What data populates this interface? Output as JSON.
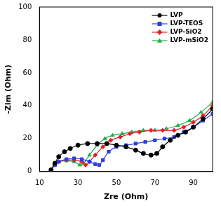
{
  "chart_data": {
    "type": "line",
    "x_label": "Zre (Ohm)",
    "y_label": "-Zim (Ohm)",
    "xlim": [
      10,
      100
    ],
    "xticks": [
      10,
      30,
      50,
      70,
      90
    ],
    "ylim": [
      0,
      100
    ],
    "yticks": [
      0,
      20,
      40,
      60,
      80,
      100
    ],
    "grid": false,
    "legend": "upper right",
    "series": [
      {
        "name": "LVP",
        "color": "#000000",
        "marker": "circle",
        "line_style": "solid",
        "x": [
          16,
          18,
          20,
          23,
          26,
          30,
          35,
          40,
          45,
          50,
          55,
          60,
          64,
          68,
          71,
          74,
          78,
          82,
          86,
          90,
          95,
          100
        ],
        "values": [
          1,
          5,
          9,
          12,
          14,
          16,
          17,
          17,
          17,
          16,
          15,
          13,
          11,
          10,
          11,
          15,
          19,
          22,
          24,
          27,
          32,
          38
        ]
      },
      {
        "name": "LVP-TEOS",
        "color": "#2a3fe0",
        "marker": "square",
        "line_style": "solid",
        "x": [
          16,
          18,
          20,
          24,
          28,
          32,
          36,
          39,
          41,
          43,
          46,
          50,
          55,
          60,
          65,
          70,
          75,
          80,
          85,
          90,
          95,
          100
        ],
        "values": [
          1,
          4,
          6,
          7.5,
          8,
          7.5,
          6,
          4.5,
          4,
          7,
          12,
          15,
          16,
          17,
          18,
          19,
          20,
          21,
          24,
          27,
          31,
          35
        ]
      },
      {
        "name": "LVP-SiO2",
        "color": "#e0202a",
        "marker": "diamond",
        "line_style": "solid",
        "x": [
          16,
          18,
          20,
          24,
          28,
          32,
          34,
          36,
          39,
          43,
          47,
          52,
          57,
          62,
          68,
          74,
          80,
          85,
          90,
          95,
          100
        ],
        "values": [
          1,
          4,
          6,
          7,
          7,
          6,
          4,
          6,
          10,
          15,
          19,
          21,
          23,
          24,
          25,
          25,
          25,
          27,
          30,
          34,
          40
        ]
      },
      {
        "name": "LVP-mSiO2",
        "color": "#22b04a",
        "marker": "triangle",
        "line_style": "solid",
        "x": [
          16,
          18,
          20,
          24,
          28,
          31,
          33,
          36,
          40,
          44,
          48,
          53,
          58,
          64,
          70,
          76,
          82,
          88,
          94,
          100
        ],
        "values": [
          1,
          4,
          6,
          6.5,
          6,
          4,
          5,
          10,
          16,
          20,
          22,
          23,
          24,
          25,
          25,
          26,
          28,
          31,
          36,
          42
        ]
      }
    ]
  }
}
